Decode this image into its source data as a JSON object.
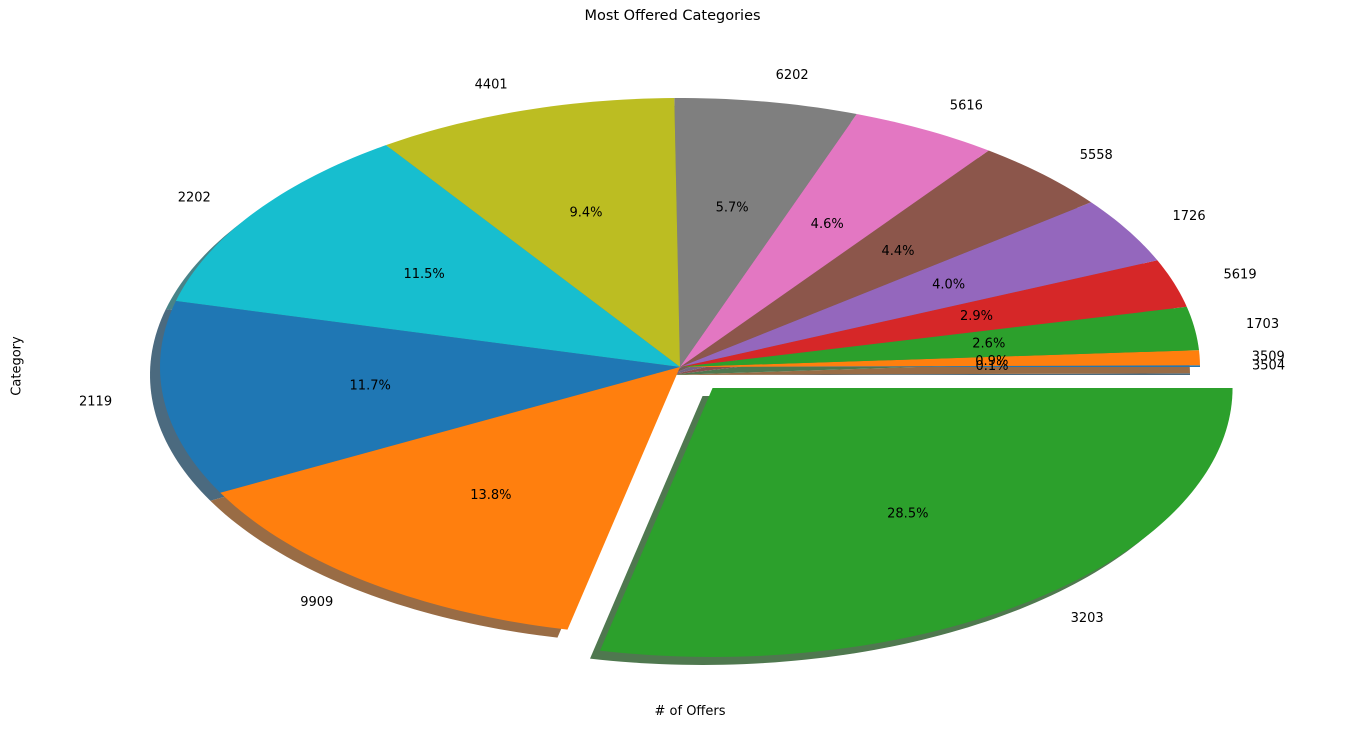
{
  "chart_data": {
    "type": "pie",
    "title": "Most Offered Categories",
    "xlabel": "# of Offers",
    "ylabel": "Category",
    "shadow": true,
    "startangle_deg": 0,
    "counterclockwise": true,
    "exploded": [
      "3203"
    ],
    "slices": [
      {
        "label": "3504",
        "pct": 0.1,
        "pct_text": "0.1%",
        "color": "#1f77b4"
      },
      {
        "label": "3509",
        "pct": 0.9,
        "pct_text": "0.9%",
        "color": "#ff7f0e"
      },
      {
        "label": "1703",
        "pct": 2.6,
        "pct_text": "2.6%",
        "color": "#2ca02c"
      },
      {
        "label": "5619",
        "pct": 2.9,
        "pct_text": "2.9%",
        "color": "#d62728"
      },
      {
        "label": "1726",
        "pct": 4.0,
        "pct_text": "4.0%",
        "color": "#9467bd"
      },
      {
        "label": "5558",
        "pct": 4.4,
        "pct_text": "4.4%",
        "color": "#8c564b"
      },
      {
        "label": "5616",
        "pct": 4.6,
        "pct_text": "4.6%",
        "color": "#e377c2"
      },
      {
        "label": "6202",
        "pct": 5.7,
        "pct_text": "5.7%",
        "color": "#7f7f7f"
      },
      {
        "label": "4401",
        "pct": 9.4,
        "pct_text": "9.4%",
        "color": "#bcbd22"
      },
      {
        "label": "2202",
        "pct": 11.5,
        "pct_text": "11.5%",
        "color": "#17becf"
      },
      {
        "label": "2119",
        "pct": 11.7,
        "pct_text": "11.7%",
        "color": "#1f77b4"
      },
      {
        "label": "9909",
        "pct": 13.8,
        "pct_text": "13.8%",
        "color": "#ff7f0e"
      },
      {
        "label": "3203",
        "pct": 28.5,
        "pct_text": "28.5%",
        "color": "#2ca02c"
      }
    ]
  }
}
